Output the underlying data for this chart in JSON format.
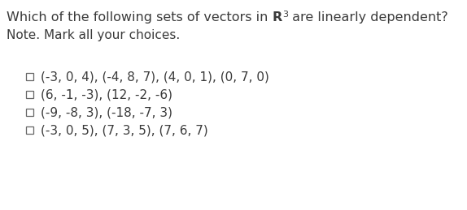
{
  "title_part1": "Which of the following sets of vectors in ",
  "title_R": "R",
  "title_sup": "3",
  "title_part2": " are linearly dependent?",
  "note_text": "Note. Mark all your choices.",
  "options": [
    "(-3, 0, 4), (-4, 8, 7), (4, 0, 1), (0, 7, 0)",
    "(6, -1, -3), (12, -2, -6)",
    "(-9, -8, 3), (-18, -7, 3)",
    "(-3, 0, 5), (7, 3, 5), (7, 6, 7)"
  ],
  "bg_color": "#ffffff",
  "text_color": "#3a3a3a",
  "font_size_title": 11.5,
  "font_size_note": 11.0,
  "font_size_options": 11.0,
  "font_size_sup": 8.0
}
